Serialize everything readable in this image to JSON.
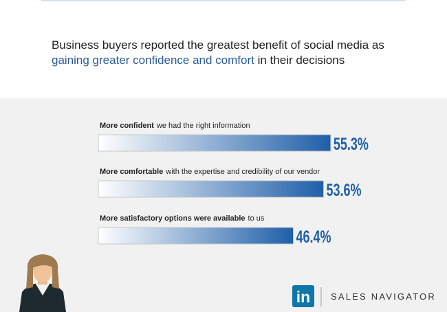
{
  "chart_data": {
    "type": "bar",
    "title_parts": [
      "Business buyers reported the greatest benefit of social media as",
      "gaining greater confidence and comfort",
      "in their decisions"
    ],
    "title_highlight_color": "#2b5b97",
    "categories": [
      {
        "bold": "More confident",
        "rest": "we had the right information"
      },
      {
        "bold": "More comfortable",
        "rest": "with the expertise and credibility of our vendor"
      },
      {
        "bold": "More satisfactory options were available",
        "rest": "to us"
      }
    ],
    "values": [
      55.3,
      53.6,
      46.4
    ],
    "value_labels": [
      "55.3%",
      "53.6%",
      "46.4%"
    ],
    "color": "#1f5fa8"
  },
  "brand": {
    "logo": "in",
    "name": "SALES NAVIGATOR"
  }
}
